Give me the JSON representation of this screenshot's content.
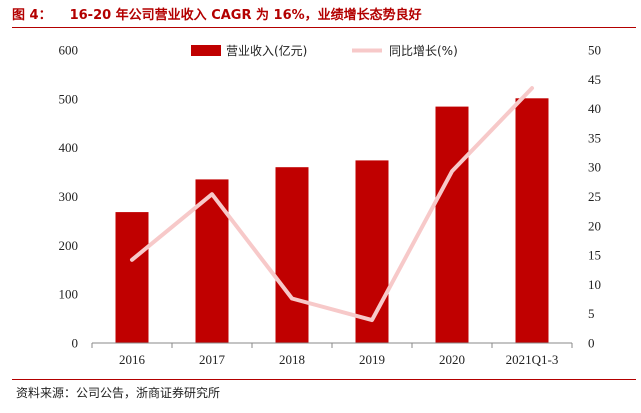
{
  "header": {
    "figure_label": "图 4：",
    "title_text": "16-20 年公司营业收入 CAGR 为 16%，业绩增长态势良好"
  },
  "footer": {
    "source": "资料来源：公司公告，浙商证券研究所"
  },
  "colors": {
    "bar": "#c00000",
    "line": "#f7c9c9",
    "rule": "#b30000"
  },
  "chart_data": {
    "type": "bar",
    "title": "16-20 年公司营业收入 CAGR 为 16%，业绩增长态势良好",
    "categories": [
      "2016",
      "2017",
      "2018",
      "2019",
      "2020",
      "2021Q1-3"
    ],
    "series": [
      {
        "name": "营业收入(亿元)",
        "type": "bar",
        "axis": "left",
        "values": [
          268,
          335,
          360,
          374,
          484,
          501
        ]
      },
      {
        "name": "同比增长(%)",
        "type": "line",
        "axis": "right",
        "values": [
          14.2,
          25.4,
          7.6,
          3.9,
          29.3,
          43.5
        ]
      }
    ],
    "ylim_left": [
      0,
      600
    ],
    "yticks_left": [
      "0",
      "100",
      "200",
      "300",
      "400",
      "500",
      "600"
    ],
    "ylim_right": [
      0,
      50
    ],
    "yticks_right": [
      "0",
      "5",
      "10",
      "15",
      "20",
      "25",
      "30",
      "35",
      "40",
      "45",
      "50"
    ],
    "legend": [
      "营业收入(亿元)",
      "同比增长(%)"
    ],
    "legend_position": "top-center",
    "grid": false
  }
}
